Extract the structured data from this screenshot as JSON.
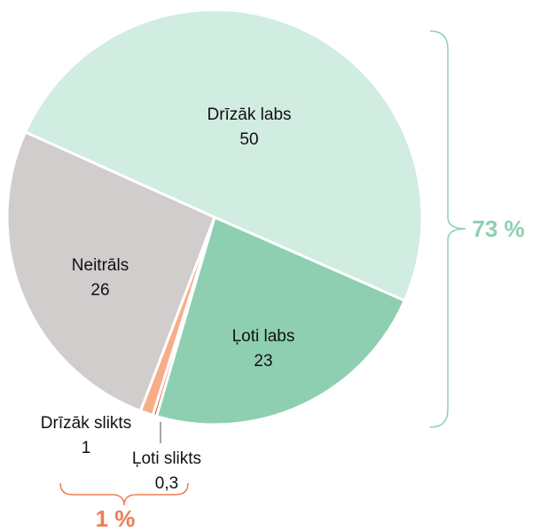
{
  "chart_data": {
    "type": "pie",
    "categories": [
      "Ļoti labs",
      "Ļoti slikts",
      "Drīzāk slikts",
      "Neitrāls",
      "Drīzāk labs"
    ],
    "values": [
      23,
      0.3,
      1,
      26,
      50
    ],
    "value_labels": [
      "23",
      "0,3",
      "1",
      "26",
      "50"
    ],
    "colors": [
      "#8ecfb2",
      "#e0704f",
      "#f7ae88",
      "#d1cdcd",
      "#d1ece0"
    ],
    "annotations": [
      {
        "text": "73 %",
        "color": "#8ecfb2"
      },
      {
        "text": "1 %",
        "color": "#ef7d55"
      }
    ]
  }
}
